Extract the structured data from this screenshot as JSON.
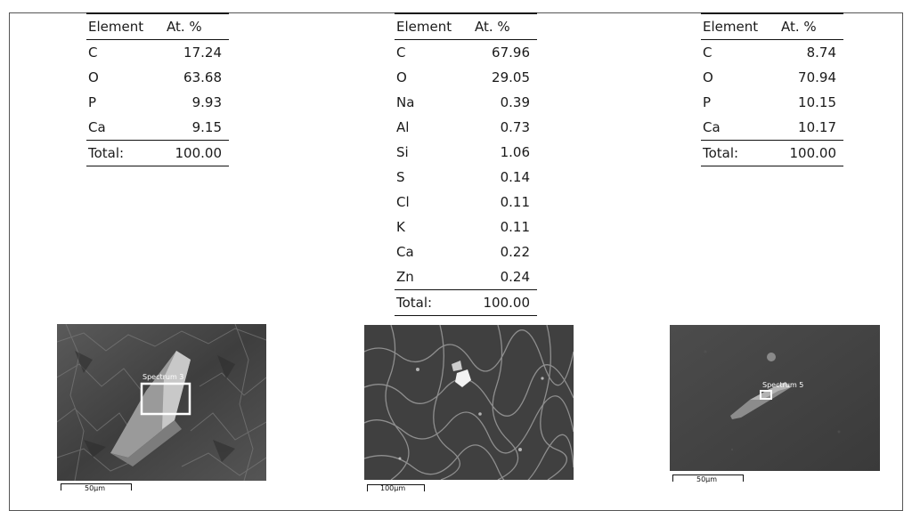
{
  "tables": [
    {
      "header": {
        "element": "Element",
        "percent": "At. %"
      },
      "rows": [
        {
          "element": "C",
          "value": "17.24"
        },
        {
          "element": "O",
          "value": "63.68"
        },
        {
          "element": "P",
          "value": "9.93"
        },
        {
          "element": "Ca",
          "value": "9.15"
        }
      ],
      "total": {
        "label": "Total:",
        "value": "100.00"
      }
    },
    {
      "header": {
        "element": "Element",
        "percent": "At. %"
      },
      "rows": [
        {
          "element": "C",
          "value": "67.96"
        },
        {
          "element": "O",
          "value": "29.05"
        },
        {
          "element": "Na",
          "value": "0.39"
        },
        {
          "element": "Al",
          "value": "0.73"
        },
        {
          "element": "Si",
          "value": "1.06"
        },
        {
          "element": "S",
          "value": "0.14"
        },
        {
          "element": "Cl",
          "value": "0.11"
        },
        {
          "element": "K",
          "value": "0.11"
        },
        {
          "element": "Ca",
          "value": "0.22"
        },
        {
          "element": "Zn",
          "value": "0.24"
        }
      ],
      "total": {
        "label": "Total:",
        "value": "100.00"
      }
    },
    {
      "header": {
        "element": "Element",
        "percent": "At. %"
      },
      "rows": [
        {
          "element": "C",
          "value": "8.74"
        },
        {
          "element": "O",
          "value": "70.94"
        },
        {
          "element": "P",
          "value": "10.15"
        },
        {
          "element": "Ca",
          "value": "10.17"
        }
      ],
      "total": {
        "label": "Total:",
        "value": "100.00"
      }
    }
  ],
  "images": [
    {
      "spectrum_label": "Spectrum 3",
      "scale_label": "50µm"
    },
    {
      "scale_label": "100µm"
    },
    {
      "spectrum_label": "Spectrum 5",
      "scale_label": "50µm"
    }
  ]
}
